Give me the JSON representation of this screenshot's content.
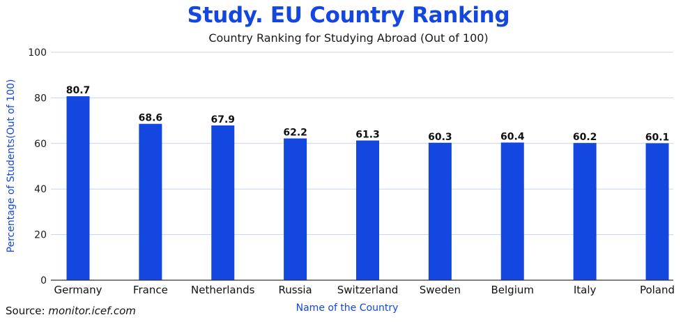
{
  "header": {
    "title": "Study. EU Country Ranking",
    "subtitle": "Country Ranking for Studying Abroad (Out of 100)"
  },
  "source": {
    "label": "Source:",
    "url": "monitor.icef.com"
  },
  "colors": {
    "title": "#1446e0",
    "bar": "#1446e0",
    "axis_title": "#1446e0",
    "grid": "#c8d3e6"
  },
  "chart_data": {
    "type": "bar",
    "title": "Study. EU Country Ranking",
    "subtitle": "Country Ranking for Studying Abroad (Out of 100)",
    "xlabel": "Name of the Country",
    "ylabel": "Percentage of Students(Out of 100)",
    "categories": [
      "Germany",
      "France",
      "Netherlands",
      "Russia",
      "Switzerland",
      "Sweden",
      "Belgium",
      "Italy",
      "Poland"
    ],
    "values": [
      80.7,
      68.6,
      67.9,
      62.2,
      61.3,
      60.3,
      60.4,
      60.2,
      60.1
    ],
    "value_labels": [
      "80.7",
      "68.6",
      "67.9",
      "62.2",
      "61.3",
      "60.3",
      "60.4",
      "60.2",
      "60.1"
    ],
    "ylim": [
      0,
      100
    ],
    "yticks": [
      0,
      20,
      40,
      60,
      80,
      100
    ],
    "grid": true,
    "legend": "none"
  }
}
